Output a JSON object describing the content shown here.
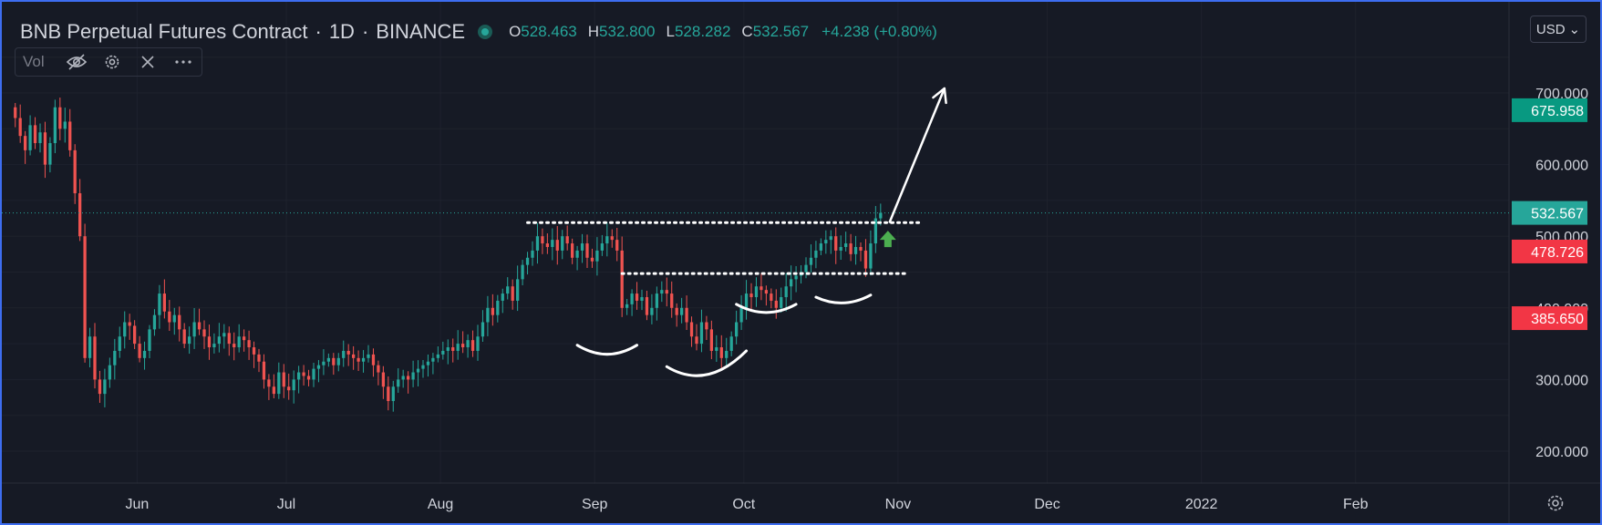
{
  "header": {
    "symbol": "BNB Perpetual Futures Contract",
    "interval": "1D",
    "exchange": "BINANCE",
    "ohlc": {
      "o_label": "O",
      "o_value": "528.463",
      "h_label": "H",
      "h_value": "532.800",
      "l_label": "L",
      "l_value": "528.282",
      "c_label": "C",
      "c_value": "532.567",
      "change": "+4.238 (+0.80%)"
    }
  },
  "indicator": {
    "label": "Vol"
  },
  "currency": {
    "label": "USD",
    "caret": "⌄"
  },
  "colors": {
    "background": "#161a25",
    "grid": "#1e222d",
    "up": "#26a69a",
    "down": "#ef5350",
    "axis_text": "#d1d4dc",
    "drawing": "#ffffff",
    "arrow_green": "#26a69a",
    "tag_green": "#089981",
    "tag_red": "#f23645",
    "tag_teal": "#26a69a"
  },
  "icons": [
    "eye-off-icon",
    "gear-icon",
    "close-icon",
    "more-icon",
    "settings-icon"
  ],
  "chart_data": {
    "type": "candlestick",
    "x_axis_labels": [
      "Jun",
      "Jul",
      "Aug",
      "Sep",
      "Oct",
      "Nov",
      "Dec",
      "2022",
      "Feb"
    ],
    "y_axis_labels": [
      "200.000",
      "300.000",
      "400.000",
      "500.000",
      "600.000",
      "700.000"
    ],
    "y_ticks": [
      200,
      300,
      400,
      500,
      600,
      700
    ],
    "ylim": [
      160,
      800
    ],
    "x_start": "2021-05-07",
    "x_end": "2022-02-28",
    "month_ticks": [
      "2021-06-01",
      "2021-07-01",
      "2021-08-01",
      "2021-09-01",
      "2021-10-01",
      "2021-11-01",
      "2021-12-01",
      "2022-01-01",
      "2022-02-01"
    ],
    "price_tags": [
      {
        "value": 675.958,
        "label": "675.958",
        "color": "#089981"
      },
      {
        "value": 532.567,
        "label": "532.567",
        "color": "#26a69a"
      },
      {
        "value": 478.726,
        "label": "478.726",
        "color": "#f23645"
      },
      {
        "value": 385.65,
        "label": "385.650",
        "color": "#f23645"
      }
    ],
    "last_price": 532.567,
    "closes": [
      665,
      640,
      620,
      655,
      630,
      645,
      600,
      630,
      680,
      650,
      660,
      620,
      560,
      500,
      330,
      360,
      300,
      280,
      300,
      320,
      340,
      360,
      380,
      375,
      350,
      330,
      340,
      370,
      390,
      420,
      395,
      380,
      390,
      370,
      350,
      360,
      380,
      370,
      360,
      345,
      350,
      360,
      365,
      350,
      345,
      360,
      355,
      345,
      335,
      325,
      300,
      290,
      280,
      310,
      290,
      285,
      300,
      310,
      305,
      300,
      315,
      320,
      325,
      330,
      320,
      330,
      340,
      335,
      330,
      325,
      330,
      335,
      320,
      310,
      290,
      270,
      290,
      300,
      305,
      300,
      310,
      315,
      320,
      325,
      330,
      335,
      340,
      345,
      340,
      350,
      345,
      355,
      340,
      360,
      380,
      400,
      390,
      410,
      420,
      430,
      410,
      440,
      460,
      470,
      480,
      500,
      490,
      485,
      495,
      480,
      500,
      490,
      470,
      480,
      490,
      470,
      465,
      480,
      490,
      500,
      495,
      480,
      400,
      405,
      420,
      410,
      415,
      390,
      400,
      420,
      425,
      420,
      400,
      390,
      400,
      380,
      360,
      350,
      380,
      370,
      340,
      345,
      330,
      340,
      360,
      380,
      400,
      420,
      415,
      430,
      425,
      420,
      410,
      400,
      415,
      430,
      440,
      445,
      450,
      460,
      470,
      480,
      490,
      495,
      500,
      480,
      485,
      490,
      475,
      485,
      480,
      455,
      490,
      525,
      532.567
    ]
  }
}
